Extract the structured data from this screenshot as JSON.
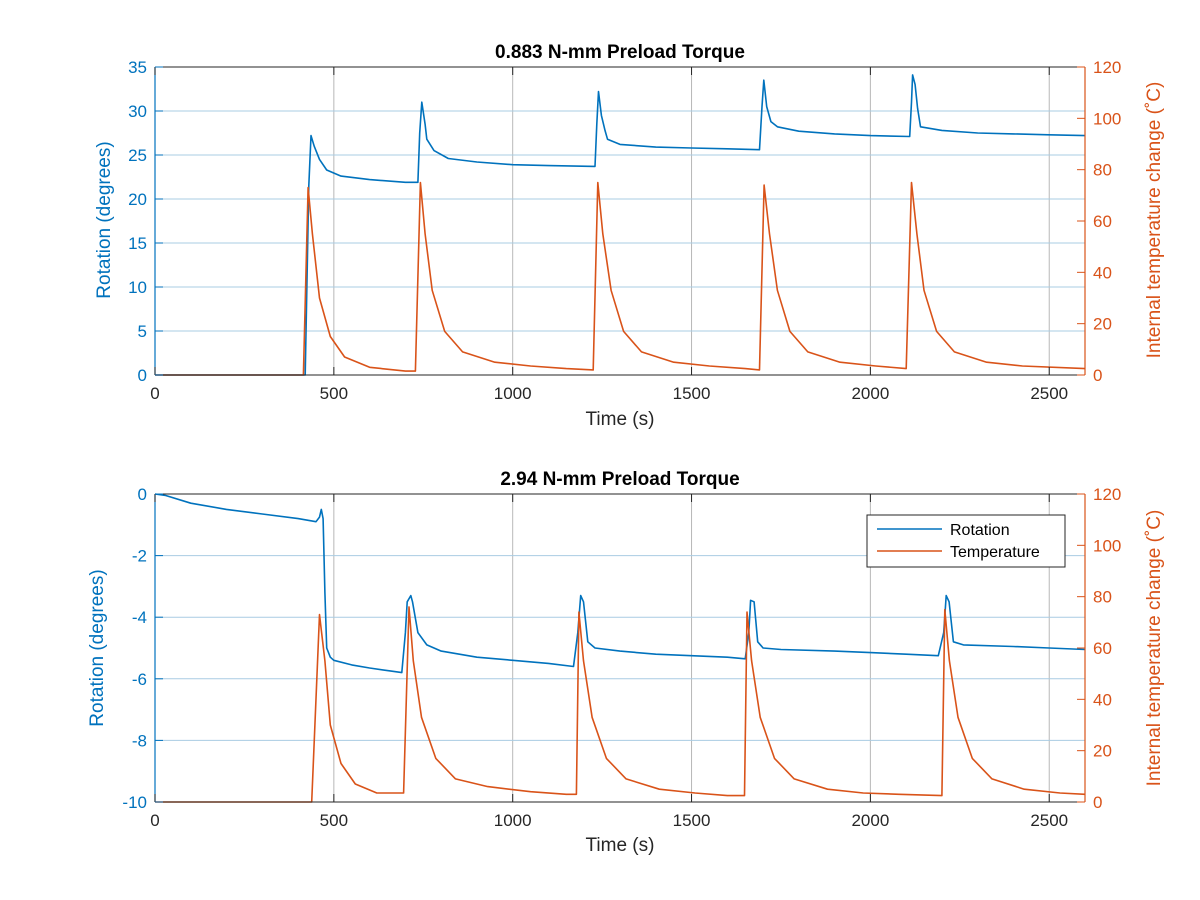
{
  "colors": {
    "rotation": "#0072BD",
    "temperature": "#D95319",
    "grid_x": "#b8b8b8",
    "grid_y": "#a9cce3",
    "axis": "#262626"
  },
  "chart_data": [
    {
      "type": "line",
      "title": "0.883 N-mm Preload Torque",
      "xlabel": "Time (s)",
      "ylabel_left": "Rotation (degrees)",
      "ylabel_right": "Internal temperature change (˚C)",
      "xlim": [
        0,
        2600
      ],
      "ylim_left": [
        0,
        35
      ],
      "ylim_right": [
        0,
        120
      ],
      "xticks": [
        0,
        500,
        1000,
        1500,
        2000,
        2500
      ],
      "yticks_left": [
        0,
        5,
        10,
        15,
        20,
        25,
        30,
        35
      ],
      "yticks_right": [
        0,
        20,
        40,
        60,
        80,
        100,
        120
      ],
      "grid": "on",
      "legend": null,
      "series": [
        {
          "name": "Rotation",
          "axis": "left",
          "x": [
            0,
            420,
            430,
            436,
            445,
            460,
            480,
            520,
            600,
            700,
            735,
            740,
            746,
            755,
            760,
            780,
            820,
            900,
            1000,
            1100,
            1230,
            1235,
            1240,
            1248,
            1258,
            1265,
            1300,
            1400,
            1500,
            1600,
            1690,
            1697,
            1702,
            1710,
            1722,
            1740,
            1800,
            1900,
            2000,
            2110,
            2115,
            2118,
            2125,
            2132,
            2140,
            2200,
            2300,
            2400,
            2500,
            2600
          ],
          "y": [
            0,
            0,
            21.5,
            27.2,
            26,
            24.5,
            23.3,
            22.6,
            22.2,
            21.9,
            21.9,
            27.5,
            31,
            28.5,
            26.8,
            25.5,
            24.6,
            24.2,
            23.9,
            23.8,
            23.7,
            28.5,
            32.2,
            29.5,
            27.8,
            26.8,
            26.2,
            25.9,
            25.8,
            25.7,
            25.6,
            30.5,
            33.5,
            30.5,
            28.8,
            28.2,
            27.7,
            27.4,
            27.2,
            27.1,
            31,
            34.1,
            33,
            30.3,
            28.2,
            27.8,
            27.5,
            27.4,
            27.3,
            27.2
          ]
        },
        {
          "name": "Temperature",
          "axis": "right",
          "x": [
            0,
            415,
            428,
            440,
            460,
            490,
            530,
            600,
            700,
            728,
            742,
            755,
            775,
            810,
            860,
            950,
            1050,
            1150,
            1225,
            1238,
            1252,
            1275,
            1310,
            1360,
            1450,
            1550,
            1650,
            1690,
            1703,
            1718,
            1740,
            1775,
            1825,
            1915,
            2015,
            2100,
            2115,
            2130,
            2150,
            2185,
            2235,
            2325,
            2425,
            2600
          ],
          "y": [
            0,
            0,
            73,
            55,
            30,
            15,
            7,
            3,
            1.5,
            1.5,
            75,
            55,
            33,
            17,
            9,
            5,
            3.5,
            2.5,
            2,
            75,
            55,
            33,
            17,
            9,
            5,
            3.5,
            2.5,
            2,
            74,
            55,
            33,
            17,
            9,
            5,
            3.5,
            2.5,
            75,
            55,
            33,
            17,
            9,
            5,
            3.5,
            2.5
          ]
        }
      ]
    },
    {
      "type": "line",
      "title": "2.94 N-mm Preload Torque",
      "xlabel": "Time (s)",
      "ylabel_left": "Rotation (degrees)",
      "ylabel_right": "Internal temperature change (˚C)",
      "xlim": [
        0,
        2600
      ],
      "ylim_left": [
        -10,
        0
      ],
      "ylim_right": [
        0,
        120
      ],
      "xticks": [
        0,
        500,
        1000,
        1500,
        2000,
        2500
      ],
      "yticks_left": [
        -10,
        -8,
        -6,
        -4,
        -2,
        0
      ],
      "yticks_right": [
        0,
        20,
        40,
        60,
        80,
        100,
        120
      ],
      "grid": "on",
      "legend": {
        "placement": "top-right",
        "entries": [
          "Rotation",
          "Temperature"
        ]
      },
      "series": [
        {
          "name": "Rotation",
          "axis": "left",
          "x": [
            0,
            30,
            100,
            200,
            300,
            400,
            450,
            460,
            465,
            470,
            475,
            480,
            490,
            500,
            550,
            600,
            660,
            690,
            700,
            705,
            715,
            720,
            735,
            760,
            800,
            900,
            1000,
            1100,
            1170,
            1182,
            1190,
            1198,
            1210,
            1230,
            1300,
            1400,
            1500,
            1600,
            1650,
            1660,
            1665,
            1675,
            1685,
            1700,
            1750,
            1900,
            2000,
            2100,
            2190,
            2205,
            2212,
            2220,
            2232,
            2260,
            2400,
            2500,
            2600
          ],
          "y": [
            0,
            -0.05,
            -0.3,
            -0.5,
            -0.65,
            -0.8,
            -0.9,
            -0.75,
            -0.5,
            -0.8,
            -3.2,
            -5.0,
            -5.3,
            -5.4,
            -5.55,
            -5.65,
            -5.75,
            -5.8,
            -4.5,
            -3.5,
            -3.3,
            -3.5,
            -4.5,
            -4.9,
            -5.1,
            -5.3,
            -5.4,
            -5.5,
            -5.6,
            -4.5,
            -3.3,
            -3.5,
            -4.8,
            -5.0,
            -5.1,
            -5.2,
            -5.25,
            -5.3,
            -5.35,
            -4.5,
            -3.45,
            -3.5,
            -4.8,
            -5.0,
            -5.05,
            -5.1,
            -5.15,
            -5.2,
            -5.25,
            -4.5,
            -3.3,
            -3.5,
            -4.8,
            -4.9,
            -4.95,
            -5.0,
            -5.05
          ]
        },
        {
          "name": "Temperature",
          "axis": "right",
          "x": [
            0,
            438,
            460,
            475,
            490,
            520,
            560,
            620,
            690,
            695,
            710,
            722,
            745,
            785,
            840,
            930,
            1050,
            1150,
            1178,
            1185,
            1198,
            1222,
            1262,
            1317,
            1410,
            1510,
            1600,
            1648,
            1655,
            1668,
            1692,
            1732,
            1787,
            1880,
            1980,
            2080,
            2200,
            2208,
            2221,
            2245,
            2285,
            2340,
            2430,
            2530,
            2600
          ],
          "y": [
            0,
            0,
            73,
            55,
            30,
            15,
            7,
            3.5,
            3.5,
            3.5,
            76,
            55,
            33,
            17,
            9,
            6,
            4,
            3,
            3,
            74,
            55,
            33,
            17,
            9,
            5,
            3.5,
            2.5,
            2.5,
            74,
            55,
            33,
            17,
            9,
            5,
            3.5,
            3,
            2.5,
            75,
            55,
            33,
            17,
            9,
            5,
            3.5,
            3
          ]
        }
      ]
    }
  ]
}
